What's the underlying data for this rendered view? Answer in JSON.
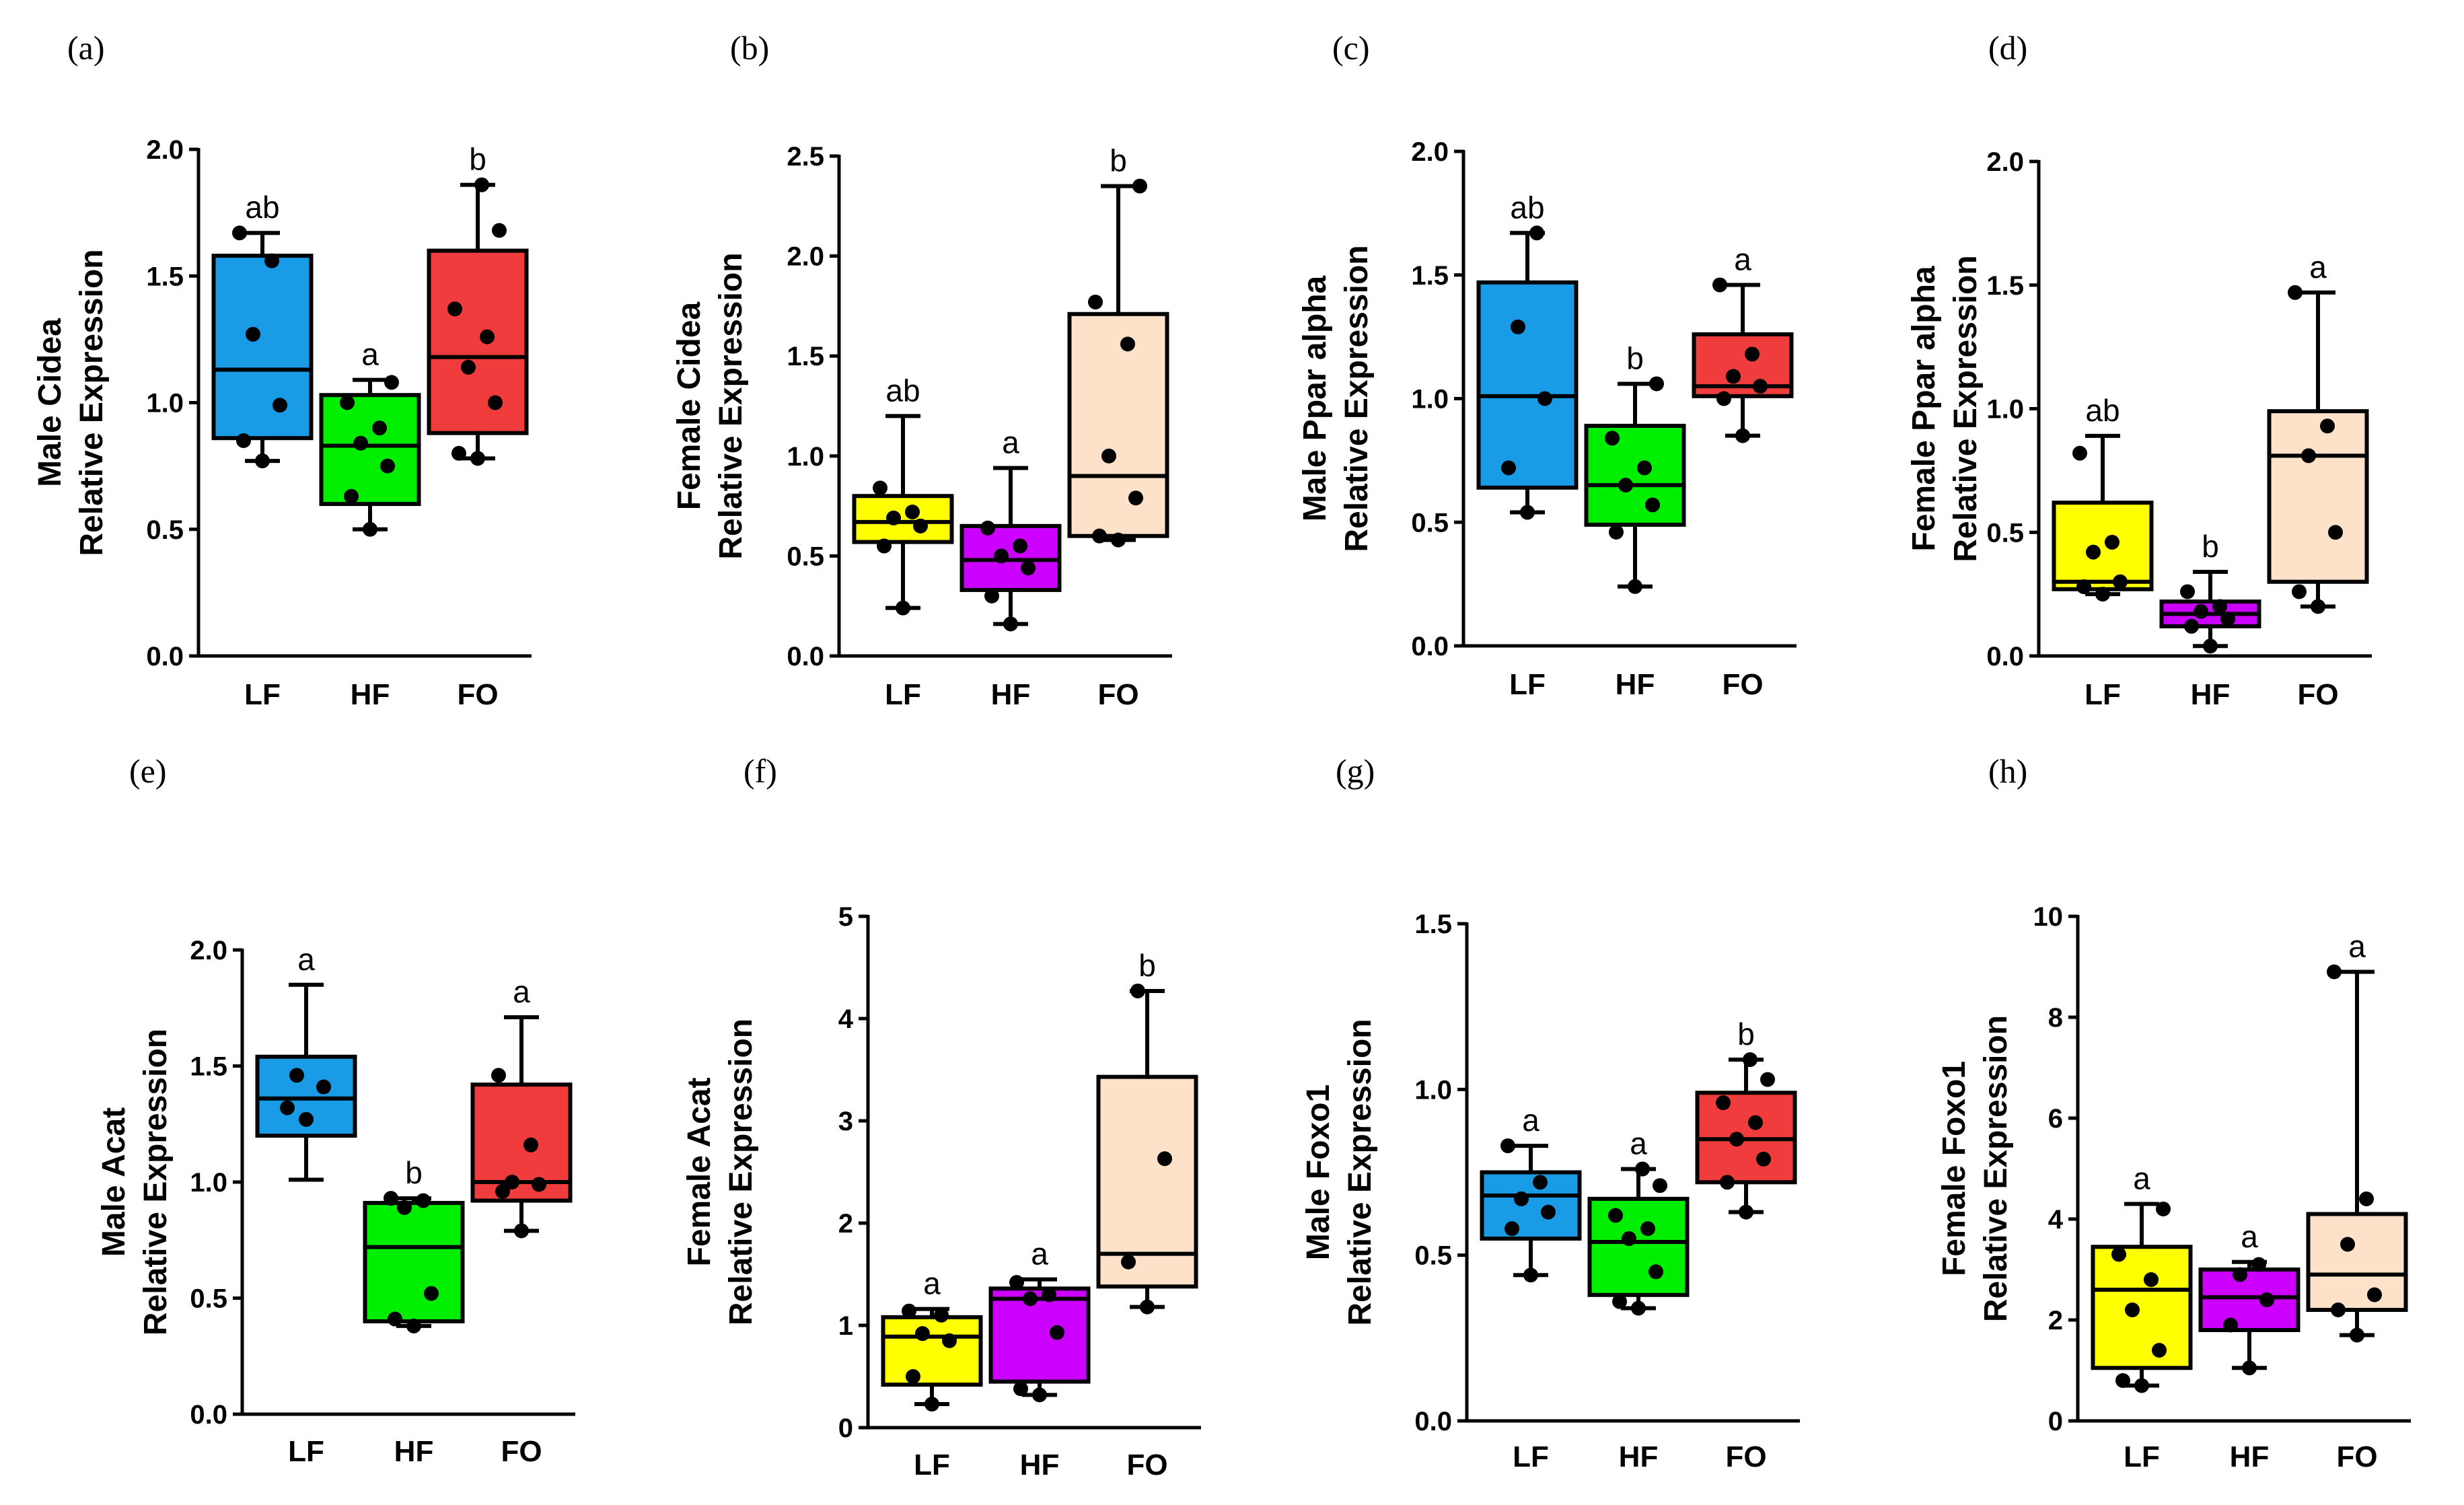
{
  "chart_data": [
    {
      "type": "box",
      "panel_label": "(a)",
      "ylabel": [
        "Male Cidea",
        "Relative Expression"
      ],
      "categories": [
        "LF",
        "HF",
        "FO"
      ],
      "yticks": [
        "0.0",
        "0.5",
        "1.0",
        "1.5",
        "2.0"
      ],
      "ylim": [
        0,
        2.0
      ],
      "boxes": [
        {
          "category": "LF",
          "color": "#1a9be6",
          "min": 0.77,
          "q1": 0.86,
          "median": 1.13,
          "q3": 1.58,
          "max": 1.67,
          "points": [
            0.77,
            0.85,
            0.99,
            1.27,
            1.56,
            1.67
          ],
          "significance": "ab"
        },
        {
          "category": "HF",
          "color": "#00ee00",
          "min": 0.5,
          "q1": 0.6,
          "median": 0.83,
          "q3": 1.03,
          "max": 1.09,
          "points": [
            0.5,
            0.63,
            0.75,
            0.84,
            0.9,
            1.0,
            1.08
          ],
          "significance": "a"
        },
        {
          "category": "FO",
          "color": "#f03c3c",
          "min": 0.78,
          "q1": 0.88,
          "median": 1.18,
          "q3": 1.6,
          "max": 1.86,
          "points": [
            0.78,
            0.8,
            1.0,
            1.14,
            1.26,
            1.37,
            1.68,
            1.86
          ],
          "significance": "b"
        }
      ]
    },
    {
      "type": "box",
      "panel_label": "(b)",
      "ylabel": [
        "Female Cidea",
        "Relative Expression"
      ],
      "categories": [
        "LF",
        "HF",
        "FO"
      ],
      "yticks": [
        "0.0",
        "0.5",
        "1.0",
        "1.5",
        "2.0",
        "2.5"
      ],
      "ylim": [
        0,
        2.5
      ],
      "boxes": [
        {
          "category": "LF",
          "color": "#ffff00",
          "min": 0.24,
          "q1": 0.57,
          "median": 0.67,
          "q3": 0.8,
          "max": 1.2,
          "points": [
            0.24,
            0.55,
            0.65,
            0.69,
            0.72,
            0.84
          ],
          "significance": "ab"
        },
        {
          "category": "HF",
          "color": "#cc00ff",
          "min": 0.16,
          "q1": 0.33,
          "median": 0.48,
          "q3": 0.65,
          "max": 0.94,
          "points": [
            0.16,
            0.3,
            0.44,
            0.5,
            0.55,
            0.64
          ],
          "significance": "a"
        },
        {
          "category": "FO",
          "color": "#fde1c8",
          "min": 0.58,
          "q1": 0.6,
          "median": 0.9,
          "q3": 1.71,
          "max": 2.35,
          "points": [
            0.58,
            0.6,
            0.79,
            1.0,
            1.56,
            1.77,
            2.35
          ],
          "significance": "b"
        }
      ]
    },
    {
      "type": "box",
      "panel_label": "(c)",
      "ylabel": [
        "Male Ppar alpha",
        "Relative Expression"
      ],
      "categories": [
        "LF",
        "HF",
        "FO"
      ],
      "yticks": [
        "0.0",
        "0.5",
        "1.0",
        "1.5",
        "2.0"
      ],
      "ylim": [
        0,
        2.0
      ],
      "boxes": [
        {
          "category": "LF",
          "color": "#1a9be6",
          "min": 0.54,
          "q1": 0.64,
          "median": 1.01,
          "q3": 1.47,
          "max": 1.67,
          "points": [
            0.54,
            0.72,
            1.0,
            1.29,
            1.67
          ],
          "significance": "ab"
        },
        {
          "category": "HF",
          "color": "#00ee00",
          "min": 0.24,
          "q1": 0.49,
          "median": 0.65,
          "q3": 0.89,
          "max": 1.06,
          "points": [
            0.24,
            0.46,
            0.57,
            0.65,
            0.72,
            0.84,
            1.06
          ],
          "significance": "b"
        },
        {
          "category": "FO",
          "color": "#f03c3c",
          "min": 0.85,
          "q1": 1.01,
          "median": 1.05,
          "q3": 1.26,
          "max": 1.46,
          "points": [
            0.85,
            1.0,
            1.05,
            1.09,
            1.18,
            1.46
          ],
          "significance": "a"
        }
      ]
    },
    {
      "type": "box",
      "panel_label": "(d)",
      "ylabel": [
        "Female Ppar alpha",
        "Relative Expression"
      ],
      "categories": [
        "LF",
        "HF",
        "FO"
      ],
      "yticks": [
        "0.0",
        "0.5",
        "1.0",
        "1.5",
        "2.0"
      ],
      "ylim": [
        0,
        2.0
      ],
      "boxes": [
        {
          "category": "LF",
          "color": "#ffff00",
          "min": 0.25,
          "q1": 0.27,
          "median": 0.3,
          "q3": 0.62,
          "max": 0.89,
          "points": [
            0.25,
            0.28,
            0.3,
            0.42,
            0.46,
            0.82
          ],
          "significance": "ab"
        },
        {
          "category": "HF",
          "color": "#cc00ff",
          "min": 0.04,
          "q1": 0.12,
          "median": 0.17,
          "q3": 0.22,
          "max": 0.34,
          "points": [
            0.04,
            0.12,
            0.15,
            0.18,
            0.2,
            0.26
          ],
          "significance": "b"
        },
        {
          "category": "FO",
          "color": "#fde1c8",
          "min": 0.2,
          "q1": 0.3,
          "median": 0.81,
          "q3": 0.99,
          "max": 1.47,
          "points": [
            0.2,
            0.26,
            0.5,
            0.81,
            0.93,
            1.47
          ],
          "significance": "a"
        }
      ]
    },
    {
      "type": "box",
      "panel_label": "(e)",
      "ylabel": [
        "Male Acat",
        "Relative Expression"
      ],
      "categories": [
        "LF",
        "HF",
        "FO"
      ],
      "yticks": [
        "0.0",
        "0.5",
        "1.0",
        "1.5",
        "2.0"
      ],
      "ylim": [
        0,
        2.0
      ],
      "boxes": [
        {
          "category": "LF",
          "color": "#1a9be6",
          "min": 1.01,
          "q1": 1.2,
          "median": 1.36,
          "q3": 1.54,
          "max": 1.85,
          "points": [
            1.27,
            1.32,
            1.41,
            1.46
          ],
          "significance": "a"
        },
        {
          "category": "HF",
          "color": "#00ee00",
          "min": 0.38,
          "q1": 0.4,
          "median": 0.72,
          "q3": 0.91,
          "max": 0.93,
          "points": [
            0.38,
            0.41,
            0.52,
            0.89,
            0.92,
            0.93
          ],
          "significance": "b"
        },
        {
          "category": "FO",
          "color": "#f03c3c",
          "min": 0.79,
          "q1": 0.92,
          "median": 1.0,
          "q3": 1.42,
          "max": 1.71,
          "points": [
            0.79,
            0.96,
            0.99,
            1.0,
            1.16,
            1.46
          ],
          "significance": "a"
        }
      ]
    },
    {
      "type": "box",
      "panel_label": "(f)",
      "ylabel": [
        "Female Acat",
        "Relative Expression"
      ],
      "categories": [
        "LF",
        "HF",
        "FO"
      ],
      "yticks": [
        "0",
        "1",
        "2",
        "3",
        "4",
        "5"
      ],
      "ylim": [
        0,
        5
      ],
      "boxes": [
        {
          "category": "LF",
          "color": "#ffff00",
          "min": 0.23,
          "q1": 0.42,
          "median": 0.89,
          "q3": 1.08,
          "max": 1.16,
          "points": [
            0.23,
            0.5,
            0.85,
            0.92,
            1.1,
            1.14
          ],
          "significance": "a"
        },
        {
          "category": "HF",
          "color": "#cc00ff",
          "min": 0.32,
          "q1": 0.45,
          "median": 1.26,
          "q3": 1.36,
          "max": 1.45,
          "points": [
            0.32,
            0.38,
            0.93,
            1.26,
            1.3,
            1.42
          ],
          "significance": "a"
        },
        {
          "category": "FO",
          "color": "#fde1c8",
          "min": 1.18,
          "q1": 1.38,
          "median": 1.7,
          "q3": 3.43,
          "max": 4.27,
          "points": [
            1.18,
            1.62,
            2.63,
            4.27
          ],
          "significance": "b"
        }
      ]
    },
    {
      "type": "box",
      "panel_label": "(g)",
      "ylabel": [
        "Male Foxo1",
        "Relative Expression"
      ],
      "categories": [
        "LF",
        "HF",
        "FO"
      ],
      "yticks": [
        "0.0",
        "0.5",
        "1.0",
        "1.5"
      ],
      "ylim": [
        0,
        1.5
      ],
      "boxes": [
        {
          "category": "LF",
          "color": "#1a9be6",
          "min": 0.44,
          "q1": 0.55,
          "median": 0.68,
          "q3": 0.75,
          "max": 0.83,
          "points": [
            0.44,
            0.58,
            0.63,
            0.67,
            0.72,
            0.83
          ],
          "significance": "a"
        },
        {
          "category": "HF",
          "color": "#00ee00",
          "min": 0.34,
          "q1": 0.38,
          "median": 0.54,
          "q3": 0.67,
          "max": 0.76,
          "points": [
            0.34,
            0.36,
            0.45,
            0.55,
            0.58,
            0.62,
            0.71,
            0.76
          ],
          "significance": "a"
        },
        {
          "category": "FO",
          "color": "#f03c3c",
          "min": 0.63,
          "q1": 0.72,
          "median": 0.85,
          "q3": 0.99,
          "max": 1.09,
          "points": [
            0.63,
            0.72,
            0.79,
            0.85,
            0.9,
            0.96,
            1.03,
            1.09
          ],
          "significance": "b"
        }
      ]
    },
    {
      "type": "box",
      "panel_label": "(h)",
      "ylabel": [
        "Female Foxo1",
        "Relative Expression"
      ],
      "categories": [
        "LF",
        "HF",
        "FO"
      ],
      "yticks": [
        "0",
        "2",
        "4",
        "6",
        "8",
        "10"
      ],
      "ylim": [
        0,
        10
      ],
      "boxes": [
        {
          "category": "LF",
          "color": "#ffff00",
          "min": 0.7,
          "q1": 1.05,
          "median": 2.6,
          "q3": 3.45,
          "max": 4.3,
          "points": [
            0.7,
            0.8,
            1.4,
            2.2,
            2.8,
            3.3,
            4.2
          ],
          "significance": "a"
        },
        {
          "category": "HF",
          "color": "#cc00ff",
          "min": 1.05,
          "q1": 1.8,
          "median": 2.45,
          "q3": 3.0,
          "max": 3.15,
          "points": [
            1.05,
            1.9,
            2.4,
            2.9,
            3.1
          ],
          "significance": "a"
        },
        {
          "category": "FO",
          "color": "#fde1c8",
          "min": 1.7,
          "q1": 2.2,
          "median": 2.9,
          "q3": 4.1,
          "max": 8.9,
          "points": [
            1.7,
            2.2,
            2.5,
            3.5,
            4.4,
            8.9
          ],
          "significance": "a"
        }
      ]
    }
  ]
}
